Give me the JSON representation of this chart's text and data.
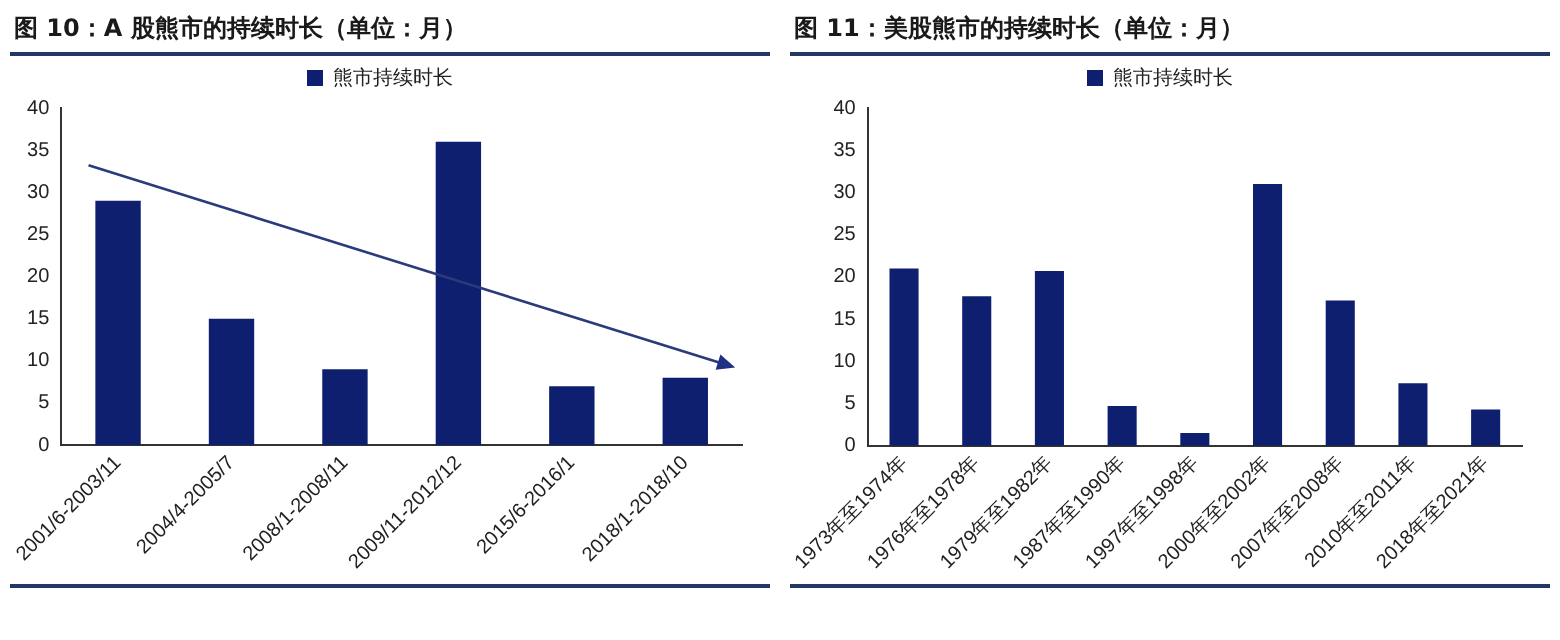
{
  "chart_data": [
    {
      "type": "bar",
      "title": "图 10：A 股熊市的持续时长（单位：月）",
      "categories": [
        "2001/6-2003/11",
        "2004/4-2005/7",
        "2008/1-2008/11",
        "2009/11-2012/12",
        "2015/6-2016/1",
        "2018/1-2018/10"
      ],
      "series": [
        {
          "name": "熊市持续时长",
          "color": "#0d1f6e",
          "values": [
            29,
            15,
            9,
            36,
            7,
            8
          ]
        }
      ],
      "ylim": [
        0,
        40
      ],
      "yticks": [
        0,
        5,
        10,
        15,
        20,
        25,
        30,
        35,
        40
      ],
      "grid": false,
      "legend": "top"
    },
    {
      "type": "bar",
      "title": "图 11：美股熊市的持续时长（单位：月）",
      "categories": [
        "1973年至1974年",
        "1976年至1978年",
        "1979年至1982年",
        "1987年至1990年",
        "1997年至1998年",
        "2000年至2002年",
        "2007年至2008年",
        "2010年至2011年",
        "2018年至2021年"
      ],
      "series": [
        {
          "name": "熊市持续时长",
          "color": "#0d1f6e",
          "values": [
            21,
            17.7,
            20.7,
            4.7,
            1.5,
            31,
            17.2,
            7.4,
            4.3
          ]
        }
      ],
      "ylim": [
        0,
        40
      ],
      "yticks": [
        0,
        5,
        10,
        15,
        20,
        25,
        30,
        35,
        40
      ],
      "grid": false,
      "legend": "top"
    }
  ]
}
